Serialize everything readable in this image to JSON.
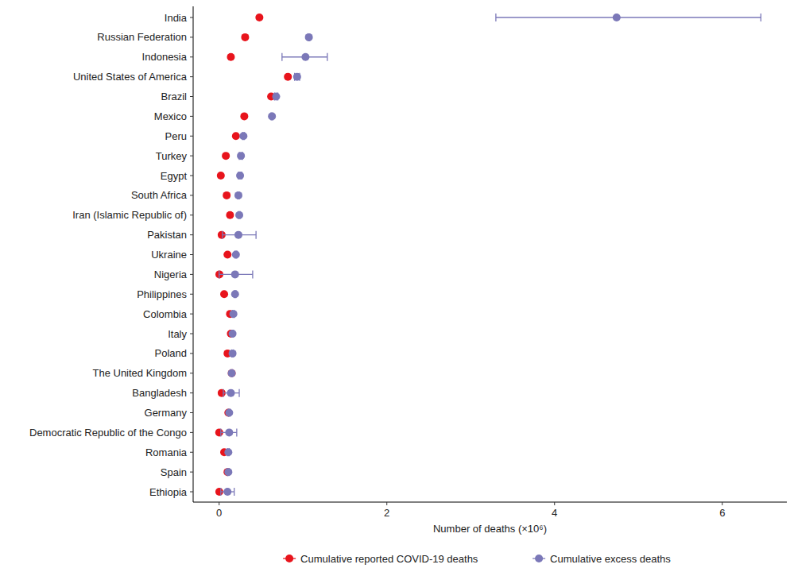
{
  "chart_data": {
    "type": "dot",
    "orientation": "horizontal",
    "legend": "bottom",
    "grid": false,
    "x_label": "Number of deaths (×10⁶)",
    "categories": [
      "India",
      "Russian Federation",
      "Indonesia",
      "United States of America",
      "Brazil",
      "Mexico",
      "Peru",
      "Turkey",
      "Egypt",
      "South Africa",
      "Iran (Islamic Republic of)",
      "Pakistan",
      "Ukraine",
      "Nigeria",
      "Philippines",
      "Colombia",
      "Italy",
      "Poland",
      "The United Kingdom",
      "Bangladesh",
      "Germany",
      "Democratic Republic of the Congo",
      "Romania",
      "Spain",
      "Ethiopia"
    ],
    "xlim": [
      -0.31,
      6.77
    ],
    "xticks": [
      0,
      2,
      4,
      6
    ],
    "series": [
      {
        "name": "Cumulative reported COVID-19 deaths",
        "color": "#e8141c",
        "marker": "circle",
        "values": [
          0.48,
          0.31,
          0.14,
          0.82,
          0.62,
          0.3,
          0.2,
          0.08,
          0.02,
          0.09,
          0.13,
          0.03,
          0.1,
          0.003,
          0.06,
          0.13,
          0.14,
          0.1,
          0.15,
          0.03,
          0.11,
          0.001,
          0.06,
          0.1,
          0.002
        ]
      },
      {
        "name": "Cumulative excess deaths",
        "color": "#7b78b8",
        "marker": "circle",
        "values": [
          4.74,
          1.07,
          1.03,
          0.93,
          0.68,
          0.63,
          0.29,
          0.26,
          0.25,
          0.23,
          0.24,
          0.23,
          0.2,
          0.19,
          0.19,
          0.17,
          0.16,
          0.16,
          0.15,
          0.14,
          0.12,
          0.12,
          0.11,
          0.11,
          0.1
        ],
        "lower": [
          3.3,
          1.06,
          0.75,
          0.9,
          0.66,
          0.62,
          0.28,
          0.24,
          0.23,
          0.22,
          0.23,
          0.04,
          0.19,
          0.0,
          0.18,
          0.16,
          0.15,
          0.15,
          0.14,
          0.05,
          0.11,
          0.02,
          0.1,
          0.1,
          0.02
        ],
        "upper": [
          6.46,
          1.08,
          1.29,
          0.96,
          0.7,
          0.64,
          0.3,
          0.28,
          0.27,
          0.24,
          0.25,
          0.44,
          0.21,
          0.4,
          0.2,
          0.18,
          0.17,
          0.17,
          0.16,
          0.24,
          0.13,
          0.21,
          0.12,
          0.12,
          0.18
        ]
      }
    ]
  }
}
